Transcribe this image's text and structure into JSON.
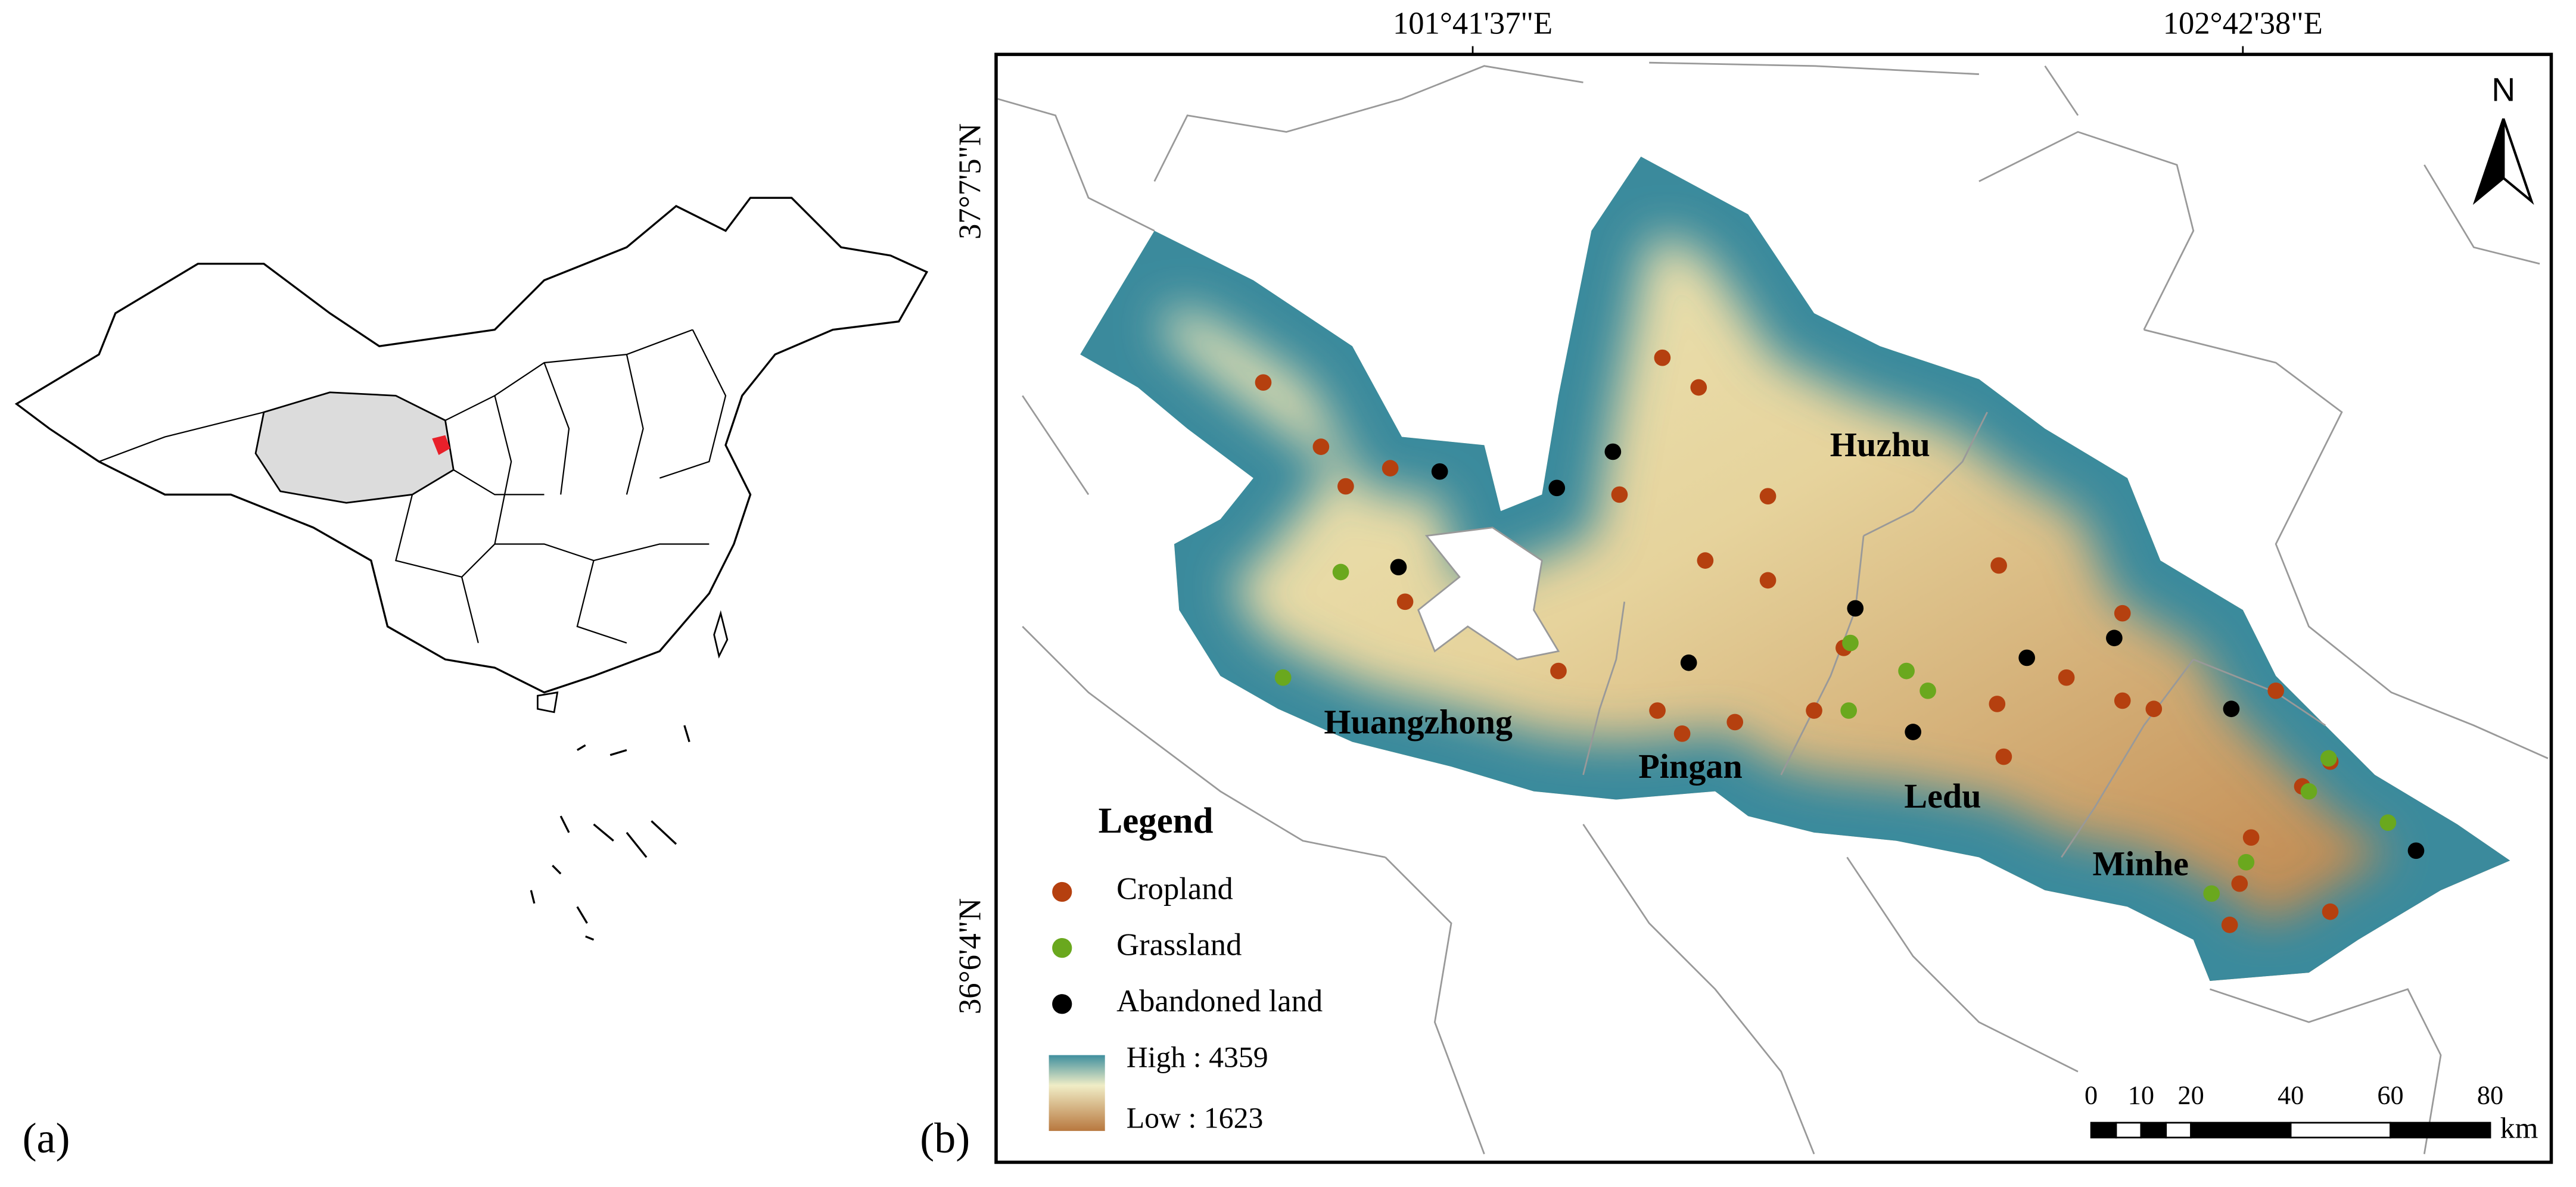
{
  "panel_a": {
    "label": "(a)"
  },
  "panel_b": {
    "label": "(b)",
    "lon_labels": [
      "101°41'37\"E",
      "102°42'38\"E"
    ],
    "lat_labels": [
      "37°7'5\"N",
      "36°6'4\"N"
    ],
    "north": "N",
    "districts": [
      "Huzhu",
      "Huangzhong",
      "Pingan",
      "Ledu",
      "Minhe"
    ],
    "legend": {
      "title": "Legend",
      "items": [
        {
          "name": "Cropland",
          "color": "#b5400f"
        },
        {
          "name": "Grassland",
          "color": "#6aa81e"
        },
        {
          "name": "Abandoned land",
          "color": "#000000"
        }
      ],
      "high": "High : 4359",
      "low": "Low : 1623"
    },
    "scale_bar": {
      "ticks": [
        0,
        10,
        20,
        40,
        60,
        80
      ],
      "unit": "km"
    }
  }
}
